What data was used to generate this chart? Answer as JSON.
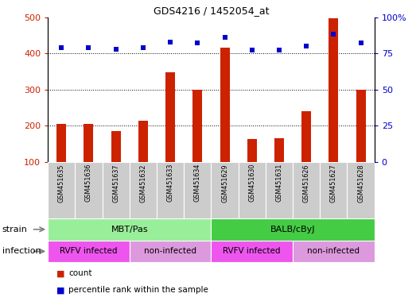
{
  "title": "GDS4216 / 1452054_at",
  "samples": [
    "GSM451635",
    "GSM451636",
    "GSM451637",
    "GSM451632",
    "GSM451633",
    "GSM451634",
    "GSM451629",
    "GSM451630",
    "GSM451631",
    "GSM451626",
    "GSM451627",
    "GSM451628"
  ],
  "counts": [
    205,
    205,
    185,
    213,
    348,
    300,
    415,
    163,
    166,
    240,
    497,
    300
  ],
  "percentiles": [
    79,
    79,
    78,
    79,
    83,
    82,
    86,
    77,
    77,
    80,
    88,
    82
  ],
  "ylim_left": [
    100,
    500
  ],
  "ylim_right": [
    0,
    100
  ],
  "yticks_left": [
    100,
    200,
    300,
    400,
    500
  ],
  "yticks_right": [
    0,
    25,
    50,
    75,
    100
  ],
  "bar_color": "#cc2200",
  "dot_color": "#0000cc",
  "strain_colors": [
    "#99ee99",
    "#44cc44"
  ],
  "strain_labels": [
    "MBT/Pas",
    "BALB/cByJ"
  ],
  "strain_ranges": [
    [
      0,
      6
    ],
    [
      6,
      12
    ]
  ],
  "infection_labels": [
    "RVFV infected",
    "non-infected",
    "RVFV infected",
    "non-infected"
  ],
  "infection_ranges": [
    [
      0,
      3
    ],
    [
      3,
      6
    ],
    [
      6,
      9
    ],
    [
      9,
      12
    ]
  ],
  "infection_colors_list": [
    "#ee55ee",
    "#dd99dd",
    "#ee55ee",
    "#dd99dd"
  ],
  "legend_count_label": "count",
  "legend_pct_label": "percentile rank within the sample",
  "label_area_color": "#cccccc",
  "bar_width": 0.35,
  "dot_size": 18
}
